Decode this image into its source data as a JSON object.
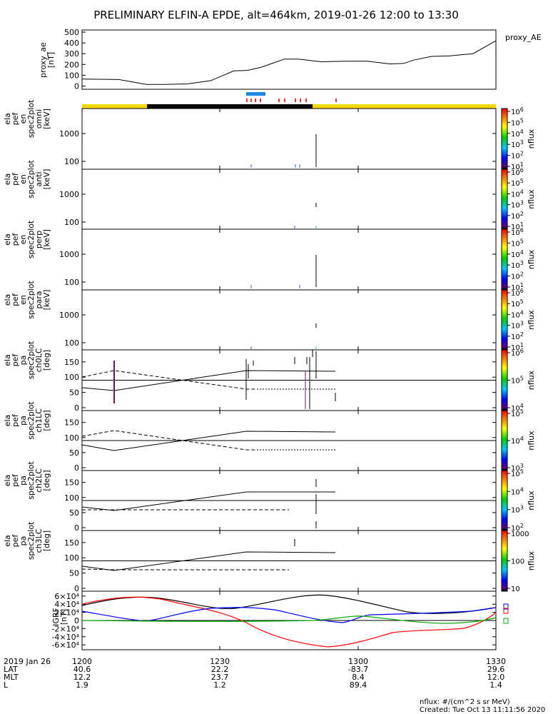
{
  "title": "PRELIMINARY ELFIN-A EPDE, alt=464km, 2019-01-26 12:00 to 13:30",
  "time_axis": {
    "ticks": [
      "1200",
      "1230",
      "1300",
      "1330"
    ],
    "rows": [
      {
        "label": "2019 Jan 26",
        "values": [
          "1200",
          "1230",
          "1300",
          "1330"
        ]
      },
      {
        "label": "LAT",
        "values": [
          "40.6",
          "22.2",
          "-83.7",
          "29.6"
        ]
      },
      {
        "label": "MLT",
        "values": [
          "12.2",
          "23.7",
          "8.4",
          "12.0"
        ]
      },
      {
        "label": "L",
        "values": [
          "1.9",
          "1.2",
          "89.4",
          "1.4"
        ]
      }
    ]
  },
  "footer": {
    "units": "nflux: #/(cm^2 s sr MeV)",
    "created": "Created: Tue Oct 13 11:11:56 2020"
  },
  "colors": {
    "night_bar": "#000000",
    "day_bar": "#f5d800",
    "science_zone": "#1e88e5",
    "collection_ticks": "#e53935",
    "igrf_x": "#0000ff",
    "igrf_y": "#00aa00",
    "igrf_z": "#ff0000",
    "igrf_total": "#000000"
  },
  "chart_data": [
    {
      "type": "line",
      "panel": "proxy_ae",
      "ylabel": "proxy_ae\n[nT]",
      "legend": "proxy_AE",
      "yticks": [
        "500",
        "400",
        "300",
        "200",
        "100",
        "0"
      ],
      "ylim": [
        -30,
        520
      ],
      "x": [
        0,
        8,
        14,
        18,
        23,
        28,
        33,
        36,
        39,
        44,
        47,
        52,
        57,
        62,
        67,
        70,
        72,
        76,
        80,
        85,
        90
      ],
      "y": [
        65,
        60,
        15,
        15,
        20,
        50,
        140,
        145,
        175,
        250,
        250,
        225,
        230,
        230,
        205,
        210,
        240,
        275,
        280,
        300,
        420
      ]
    },
    {
      "type": "heatmap",
      "panel": "ela_pef_en_spec2plot_omni",
      "ylabel": "ela\npef\nen\nspec2plot\nomni\n[keV]",
      "yticks": [
        "1000",
        "100"
      ],
      "colorbar": {
        "label": "nflux",
        "ticks": [
          "10^6",
          "10^5",
          "10^4",
          "10^3",
          "10^2",
          "10^1"
        ]
      }
    },
    {
      "type": "heatmap",
      "panel": "ela_pef_en_spec2plot_anti",
      "ylabel": "ela\npef\nen\nspec2plot\nanti\n[keV]",
      "yticks": [
        "1000",
        "100"
      ],
      "colorbar": {
        "label": "nflux",
        "ticks": [
          "10^6",
          "10^5",
          "10^4",
          "10^3",
          "10^2",
          "10^1"
        ]
      }
    },
    {
      "type": "heatmap",
      "panel": "ela_pef_en_spec2plot_perp",
      "ylabel": "ela\npef\nen\nspec2plot\nperp\n[keV]",
      "yticks": [
        "1000",
        "100"
      ],
      "colorbar": {
        "label": "nflux",
        "ticks": [
          "10^6",
          "10^5",
          "10^4",
          "10^3",
          "10^2",
          "10^1"
        ]
      }
    },
    {
      "type": "heatmap",
      "panel": "ela_pef_en_spec2plot_para",
      "ylabel": "ela\npef\nen\nspec2plot\npara\n[keV]",
      "yticks": [
        "1000",
        "100"
      ],
      "colorbar": {
        "label": "nflux",
        "ticks": [
          "10^6",
          "10^5",
          "10^4",
          "10^3",
          "10^2",
          "10^1"
        ]
      }
    },
    {
      "type": "line",
      "panel": "ela_pef_pa_spec2plot_ch0LC",
      "ylabel": "ela\npef\npa\nspec2plot\nch0LC\n[deg]",
      "yticks": [
        "150",
        "100",
        "50",
        "0"
      ],
      "ylim": [
        0,
        180
      ],
      "colorbar": {
        "label": "nflux",
        "ticks": [
          "10^6",
          "10^5",
          "10^4"
        ]
      }
    },
    {
      "type": "line",
      "panel": "ela_pef_pa_spec2plot_ch1LC",
      "ylabel": "ela\npef\npa\nspec2plot\nch1LC\n[deg]",
      "yticks": [
        "150",
        "100",
        "50",
        "0"
      ],
      "ylim": [
        0,
        180
      ],
      "colorbar": {
        "label": "nflux",
        "ticks": [
          "10^5",
          "10^4",
          "10^3"
        ]
      }
    },
    {
      "type": "line",
      "panel": "ela_pef_pa_spec2plot_ch2LC",
      "ylabel": "ela\npef\npa\nspec2plot\nch2LC\n[deg]",
      "yticks": [
        "150",
        "100",
        "50",
        "0"
      ],
      "ylim": [
        0,
        180
      ],
      "colorbar": {
        "label": "nflux",
        "ticks": [
          "10^5",
          "10^4",
          "10^3",
          "10^2"
        ]
      }
    },
    {
      "type": "line",
      "panel": "ela_pef_pa_spec2plot_ch3LC",
      "ylabel": "ela\npef\npa\nspec2plot\nch3LC\n[deg]",
      "yticks": [
        "150",
        "100",
        "50",
        "0"
      ],
      "ylim": [
        0,
        180
      ],
      "colorbar": {
        "label": "nflux",
        "ticks": [
          "1000",
          "100",
          "10"
        ]
      }
    },
    {
      "type": "line",
      "panel": "igrf",
      "ylabel": "IGRF\n[nT]",
      "yticks": [
        "6×10^4",
        "4×10^4",
        "2×10^4",
        "0",
        "-2×10^4",
        "-4×10^4",
        "-6×10^4"
      ],
      "ylim": [
        -65000,
        65000
      ]
    }
  ]
}
